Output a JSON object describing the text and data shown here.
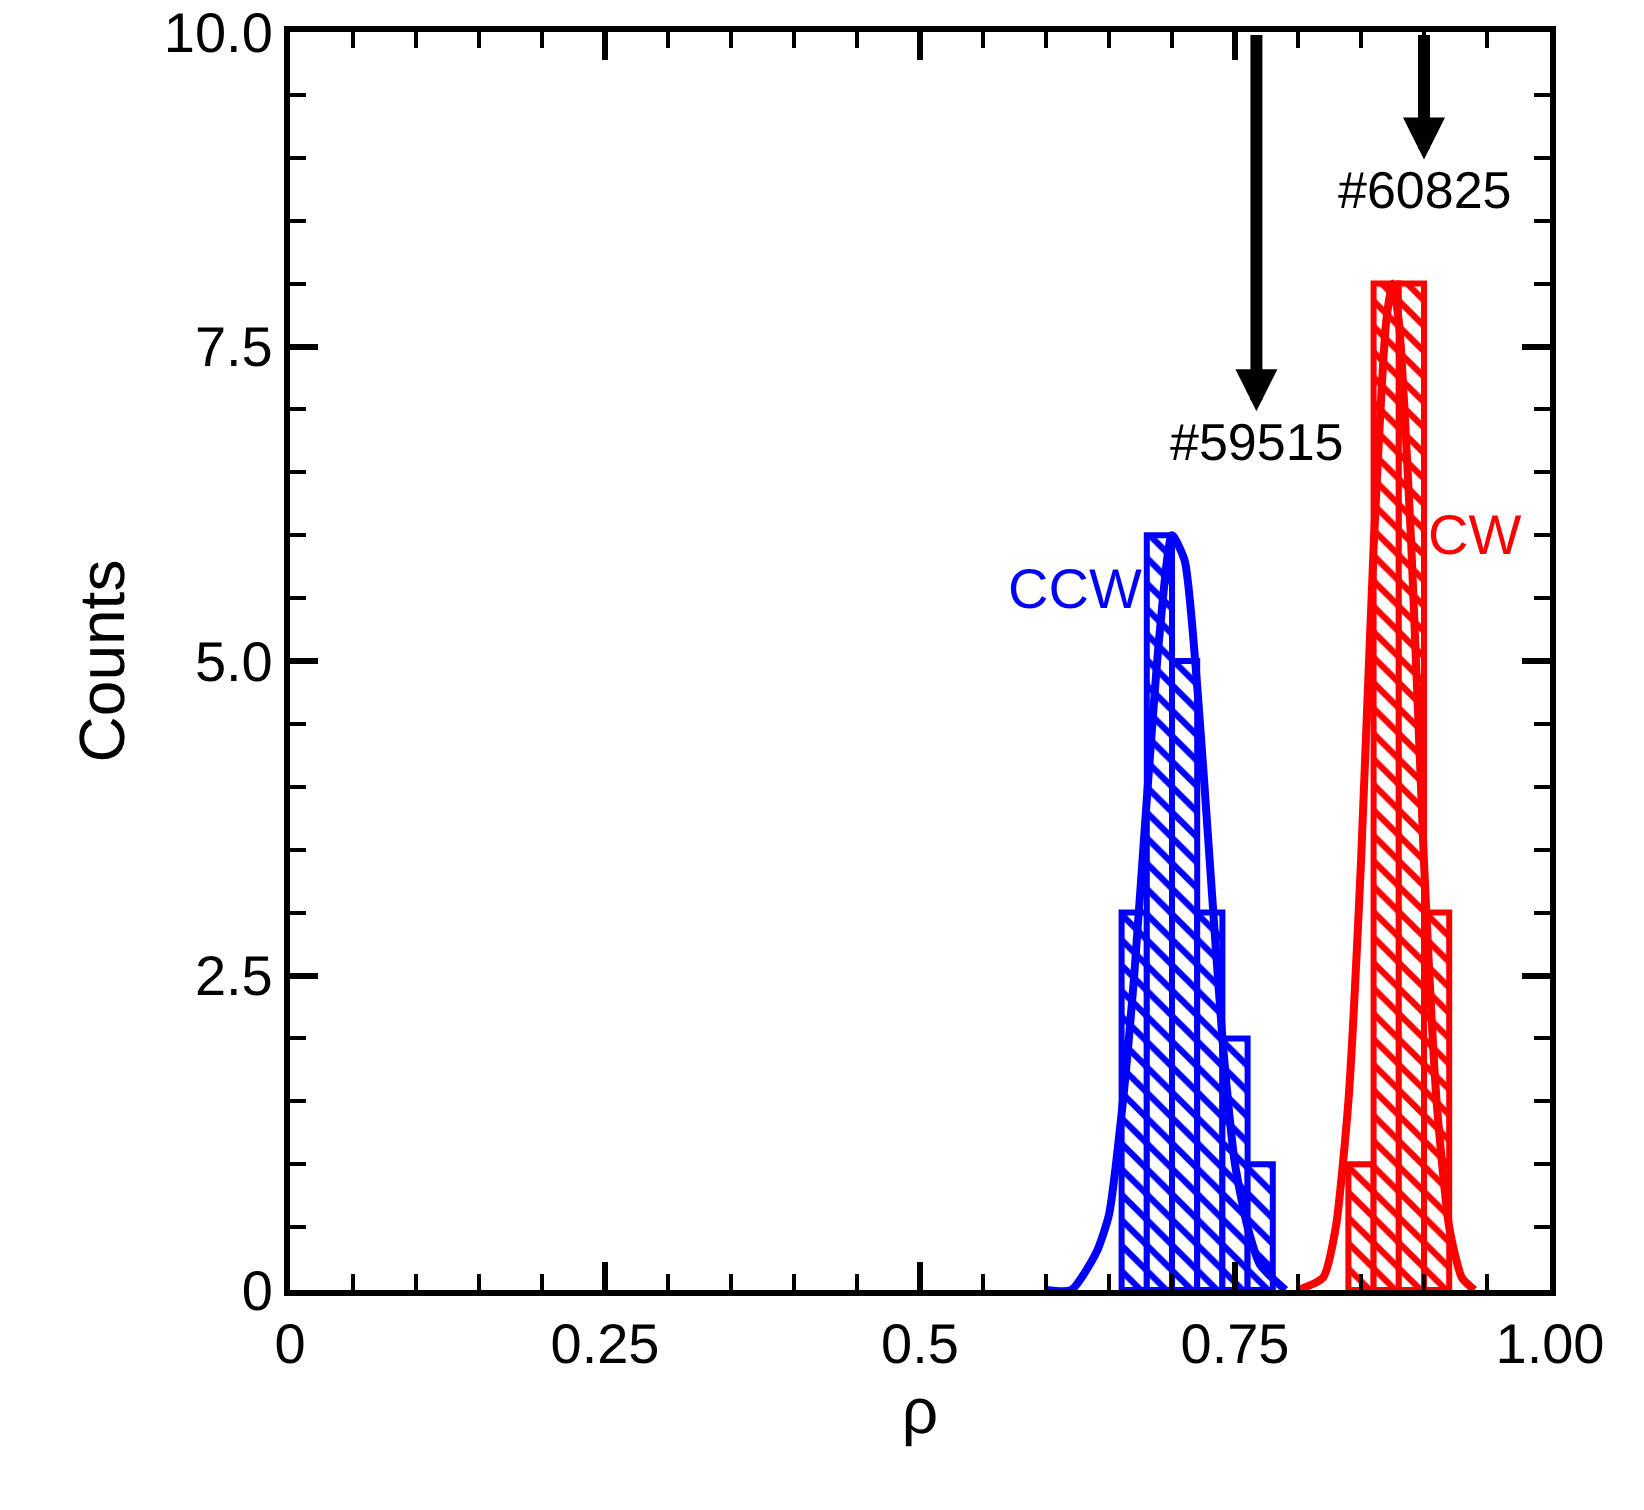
{
  "chart_data": {
    "type": "histogram",
    "xlabel": "ρ",
    "ylabel": "Counts",
    "xlim": [
      0,
      1
    ],
    "xticks": [
      0,
      0.25,
      0.5,
      0.75,
      {
        "value": 1,
        "label": "1.00"
      }
    ],
    "ylim": [
      0,
      10
    ],
    "yticks": [
      0,
      2.5,
      {
        "value": 5,
        "label": "5.0"
      },
      7.5,
      {
        "value": 10,
        "label": "10.0"
      }
    ],
    "grid": false,
    "legend": false,
    "series": [
      {
        "name": "CCW",
        "color": "#0000ff",
        "bins": [
          0.66,
          0.68,
          0.7,
          0.72,
          0.74,
          0.76,
          0.78
        ],
        "values": [
          3,
          6,
          5,
          3,
          2,
          1
        ]
      },
      {
        "name": "CW",
        "color": "#ff0000",
        "bins": [
          0.84,
          0.86,
          0.88,
          0.9,
          0.92
        ],
        "values": [
          1,
          8,
          8,
          3
        ]
      },
      {
        "type": "line",
        "color": "#0000ff",
        "x": [
          0.6,
          0.62,
          0.64,
          0.65,
          0.66,
          0.67,
          0.68,
          0.69,
          0.7,
          0.71,
          0.72,
          0.73,
          0.74,
          0.75,
          0.76,
          0.77,
          0.79
        ],
        "values": [
          0.0,
          0.0,
          0.3,
          0.6,
          1.4,
          2.5,
          3.9,
          5.2,
          6.0,
          5.8,
          4.8,
          3.4,
          2.0,
          1.0,
          0.5,
          0.2,
          0.0
        ]
      },
      {
        "type": "line",
        "color": "#ff0000",
        "x": [
          0.8,
          0.82,
          0.83,
          0.84,
          0.85,
          0.86,
          0.87,
          0.875,
          0.88,
          0.89,
          0.9,
          0.91,
          0.92,
          0.93,
          0.94
        ],
        "values": [
          0.0,
          0.1,
          0.5,
          1.5,
          3.4,
          5.9,
          7.7,
          8.0,
          7.7,
          5.9,
          3.4,
          1.5,
          0.5,
          0.1,
          0.0
        ]
      }
    ],
    "annotations": [
      {
        "text": "#59515",
        "x": 0.767
      },
      {
        "text": "#60825",
        "x": 0.9
      }
    ]
  }
}
